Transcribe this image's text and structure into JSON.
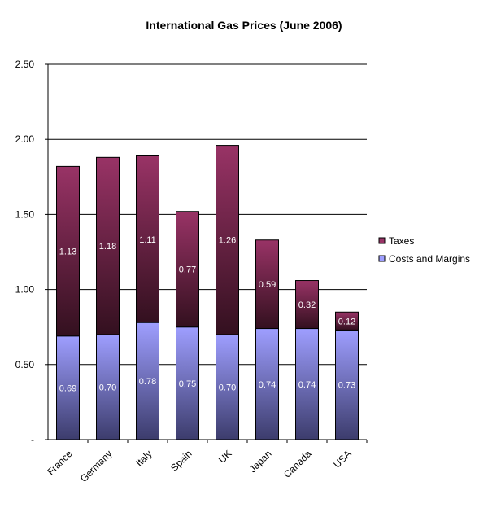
{
  "chart_data": {
    "type": "bar",
    "stacked": true,
    "title": "International Gas Prices (June 2006)",
    "xlabel": "",
    "ylabel": "",
    "categories": [
      "France",
      "Germany",
      "Italy",
      "Spain",
      "UK",
      "Japan",
      "Canada",
      "USA"
    ],
    "series": [
      {
        "name": "Costs and Margins",
        "values": [
          0.69,
          0.7,
          0.78,
          0.75,
          0.7,
          0.74,
          0.74,
          0.73
        ],
        "labels": [
          "0.69",
          "0.70",
          "0.78",
          "0.75",
          "0.70",
          "0.74",
          "0.74",
          "0.73"
        ],
        "color_top": "#9e9eff",
        "color_bottom": "#3c3c6c"
      },
      {
        "name": "Taxes",
        "values": [
          1.13,
          1.18,
          1.11,
          0.77,
          1.26,
          0.59,
          0.32,
          0.12
        ],
        "labels": [
          "1.13",
          "1.18",
          "1.11",
          "0.77",
          "1.26",
          "0.59",
          "0.32",
          "0.12"
        ],
        "color_top": "#993366",
        "color_bottom": "#33101f"
      }
    ],
    "ylim": [
      0,
      2.5
    ],
    "yticks": [
      0,
      0.5,
      1.0,
      1.5,
      2.0,
      2.5
    ],
    "ytick_labels": [
      "-",
      "0.50",
      "1.00",
      "1.50",
      "2.00",
      "2.50"
    ],
    "grid": true,
    "legend": {
      "position": "right",
      "entries": [
        "Taxes",
        "Costs and Margins"
      ]
    }
  }
}
